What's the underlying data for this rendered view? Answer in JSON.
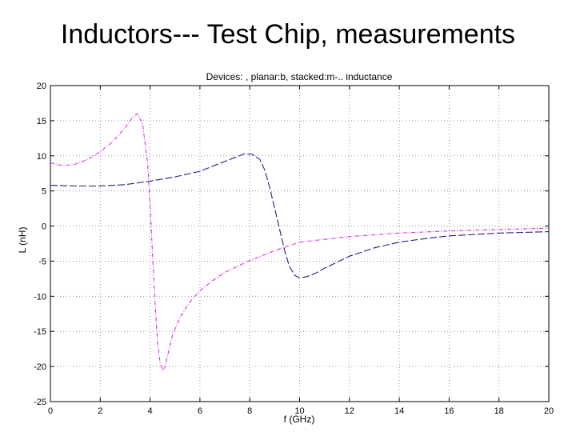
{
  "slide": {
    "title": "Inductors--- Test Chip, measurements"
  },
  "colors": {
    "planar": "#1a237e",
    "stacked": "#d633d6",
    "grid": "#7a7a7a",
    "axis": "#000000"
  },
  "chart_data": {
    "type": "line",
    "title": "Devices: , planar:b, stacked:m-.. inductance",
    "xlabel": "f (GHz)",
    "ylabel": "L (nH)",
    "xlim": [
      0,
      20
    ],
    "ylim": [
      -25,
      20
    ],
    "xticks": [
      "0",
      "2",
      "4",
      "6",
      "8",
      "10",
      "12",
      "14",
      "16",
      "18",
      "20"
    ],
    "yticks": [
      "20",
      "15",
      "10",
      "5",
      "0",
      "-5",
      "-10",
      "-15",
      "-20",
      "-25"
    ],
    "grid": true,
    "series": [
      {
        "color": "planar",
        "x": [
          0,
          1,
          2,
          3,
          4,
          5,
          6,
          6.5,
          7,
          7.5,
          7.8,
          8.1,
          8.4,
          8.6,
          8.8,
          9.0,
          9.2,
          9.4,
          9.6,
          9.8,
          10.0,
          10.3,
          10.6,
          11,
          12,
          13,
          14,
          15,
          16,
          17,
          18,
          19,
          20
        ],
        "y": [
          5.8,
          5.7,
          5.7,
          5.9,
          6.4,
          7.0,
          7.8,
          8.5,
          9.2,
          9.9,
          10.3,
          10.2,
          9.5,
          8.0,
          5.5,
          2.5,
          -0.5,
          -3.5,
          -5.8,
          -7.0,
          -7.4,
          -7.2,
          -6.8,
          -6.0,
          -4.3,
          -3.1,
          -2.3,
          -1.8,
          -1.4,
          -1.2,
          -1.0,
          -0.9,
          -0.8
        ]
      },
      {
        "color": "stacked",
        "x": [
          0,
          0.5,
          1,
          1.5,
          2,
          2.5,
          3,
          3.3,
          3.5,
          3.7,
          3.9,
          4.0,
          4.1,
          4.2,
          4.3,
          4.4,
          4.5,
          4.6,
          4.7,
          4.9,
          5.2,
          5.6,
          6,
          6.5,
          7,
          8,
          9,
          10,
          12,
          14,
          16,
          18,
          20
        ],
        "y": [
          9.0,
          8.6,
          8.8,
          9.5,
          10.6,
          12.0,
          14.0,
          15.5,
          16.0,
          14.5,
          9.0,
          3.0,
          -4.0,
          -11.0,
          -16.5,
          -19.5,
          -20.6,
          -20.0,
          -18.5,
          -15.5,
          -13.0,
          -10.8,
          -9.2,
          -7.8,
          -6.6,
          -4.9,
          -3.5,
          -2.3,
          -1.5,
          -1.0,
          -0.7,
          -0.5,
          -0.3
        ]
      }
    ]
  }
}
